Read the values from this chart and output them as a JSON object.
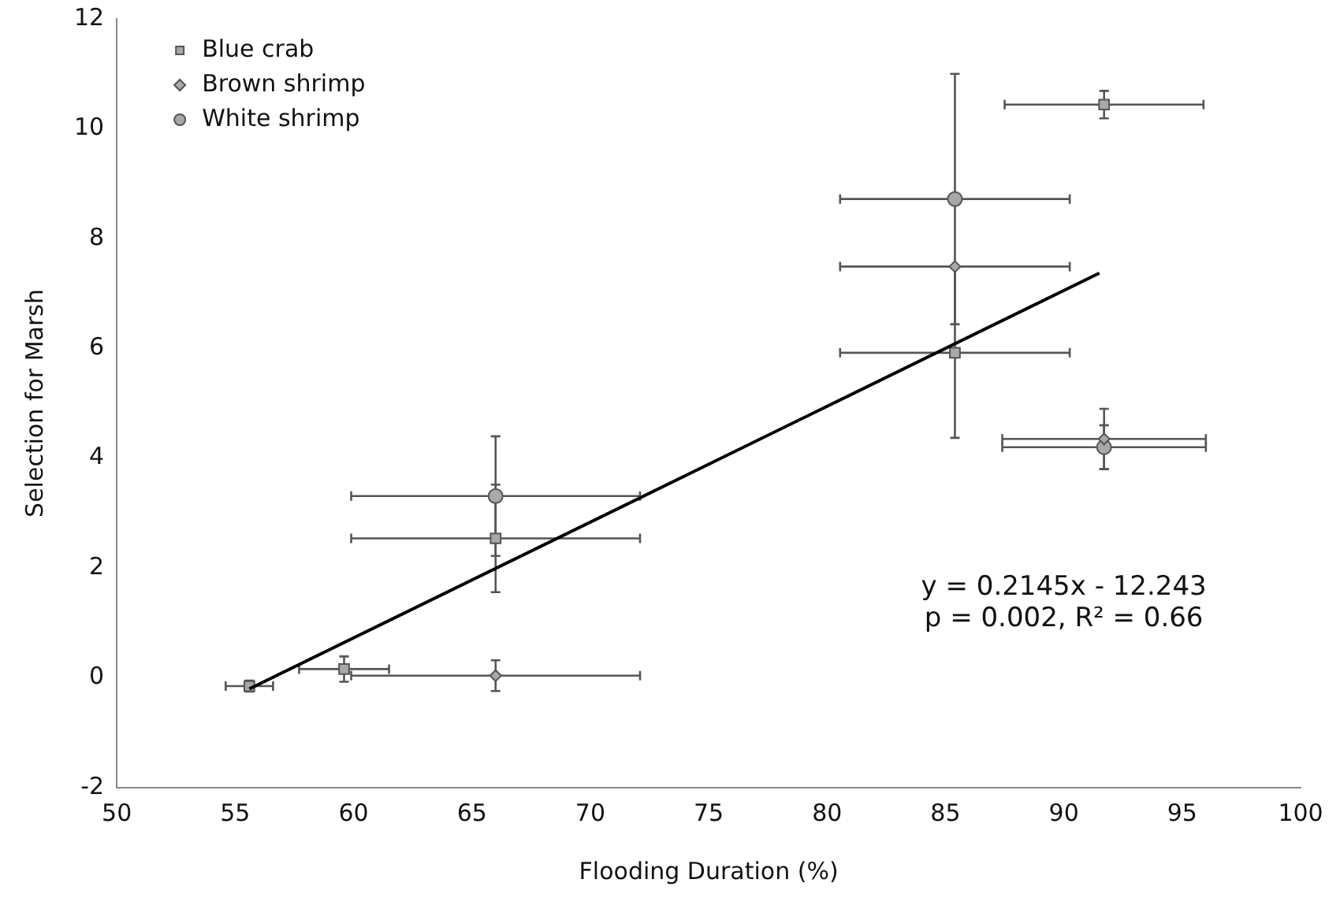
{
  "chart_data": {
    "type": "scatter",
    "xlabel": "Flooding Duration (%)",
    "ylabel": "Selection for Marsh",
    "xlim": [
      50,
      100
    ],
    "xticks": [
      50,
      55,
      60,
      65,
      70,
      75,
      80,
      85,
      90,
      95,
      100
    ],
    "ylim": [
      -2,
      12
    ],
    "yticks": [
      -2,
      0,
      2,
      4,
      6,
      8,
      10,
      12
    ],
    "legend": "top left",
    "grid": false,
    "series": [
      {
        "name": "Blue crab",
        "marker": "square",
        "color": "#a8a8a8",
        "x": [
          55.6,
          59.6,
          66.0,
          85.4,
          91.7
        ],
        "values": [
          -0.15,
          0.16,
          2.54,
          5.92,
          10.44
        ],
        "errors": [
          0.1,
          0.23,
          0.98,
          1.55,
          0.25
        ],
        "xerrors": [
          1.0,
          1.9,
          6.1,
          4.85,
          4.2
        ]
      },
      {
        "name": "Brown shrimp",
        "marker": "diamond",
        "color": "#a8a8a8",
        "x": [
          66.0,
          85.4,
          91.7
        ],
        "values": [
          0.04,
          7.49,
          4.35
        ],
        "errors": [
          0.28,
          null,
          0.55
        ],
        "xerrors": [
          6.1,
          4.85,
          4.3
        ]
      },
      {
        "name": "White shrimp",
        "marker": "circle",
        "color": "#a8a8a8",
        "x": [
          66.0,
          85.4,
          91.7
        ],
        "values": [
          3.31,
          8.72,
          4.2
        ],
        "errors": [
          1.09,
          2.28,
          0.4
        ],
        "xerrors": [
          6.1,
          4.85,
          4.3
        ]
      },
      {
        "type": "line",
        "color": "#000000",
        "x": [
          55.6,
          91.5
        ],
        "values": [
          -0.2,
          7.37
        ]
      }
    ],
    "annotations": [
      "y = 0.2145x - 12.243",
      "p = 0.002, R² = 0.66"
    ]
  }
}
